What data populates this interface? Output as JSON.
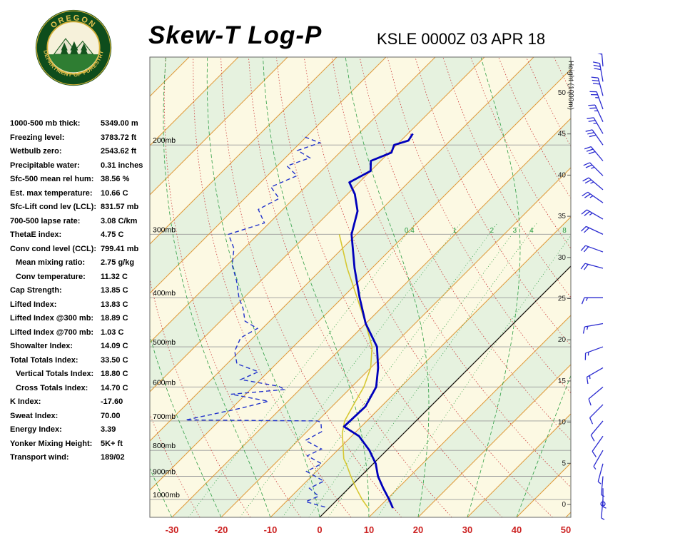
{
  "header": {
    "title": "Skew-T Log-P",
    "subtitle": "KSLE 0000Z 03 APR 18",
    "logo_top": "OREGON",
    "logo_bottom": "DEPARTMENT OF FORESTRY"
  },
  "indices": [
    {
      "label": "1000-500 mb thick:",
      "value": "5349.00 m"
    },
    {
      "label": "Freezing level:",
      "value": "3783.72 ft"
    },
    {
      "label": "Wetbulb zero:",
      "value": "2543.62 ft"
    },
    {
      "label": "Precipitable water:",
      "value": "0.31 inches"
    },
    {
      "label": "Sfc-500 mean rel hum:",
      "value": "38.56 %"
    },
    {
      "label": "Est. max temperature:",
      "value": "10.66 C"
    },
    {
      "label": "Sfc-Lift cond lev (LCL):",
      "value": "831.57 mb"
    },
    {
      "label": "700-500 lapse rate:",
      "value": "3.08 C/km"
    },
    {
      "label": "ThetaE index:",
      "value": "4.75 C"
    },
    {
      "label": "Conv cond level (CCL):",
      "value": "799.41 mb"
    },
    {
      "label": "Mean mixing ratio:",
      "value": "2.75 g/kg",
      "indent": true
    },
    {
      "label": "Conv temperature:",
      "value": "11.32 C",
      "indent": true
    },
    {
      "label": "Cap Strength:",
      "value": "13.85 C"
    },
    {
      "label": "Lifted Index:",
      "value": "13.83 C"
    },
    {
      "label": "Lifted Index @300 mb:",
      "value": "18.89 C"
    },
    {
      "label": "Lifted Index @700 mb:",
      "value": "1.03 C"
    },
    {
      "label": "Showalter Index:",
      "value": "14.09 C"
    },
    {
      "label": "Total Totals Index:",
      "value": "33.50 C"
    },
    {
      "label": "Vertical Totals Index:",
      "value": "18.80 C",
      "indent": true
    },
    {
      "label": "Cross Totals Index:",
      "value": "14.70 C",
      "indent": true
    },
    {
      "label": "K Index:",
      "value": "-17.60"
    },
    {
      "label": "Sweat Index:",
      "value": "70.00"
    },
    {
      "label": "Energy Index:",
      "value": "3.39"
    },
    {
      "label": "Yonker Mixing Height:",
      "value": "5K+ ft"
    },
    {
      "label": "Transport wind:",
      "value": "189/02"
    }
  ],
  "chart_data": {
    "type": "skewt-log-p",
    "station": "KSLE",
    "valid_time": "0000Z 03 APR 18",
    "pressure_levels": [
      200,
      300,
      400,
      500,
      600,
      700,
      800,
      900,
      1000
    ],
    "pressure_labels": [
      "200mb",
      "300mb",
      "400mb",
      "500mb",
      "600mb",
      "700mb",
      "800mb",
      "900mb",
      "1000mb"
    ],
    "temp_axis": {
      "ticks": [
        -30,
        -20,
        -10,
        0,
        10,
        20,
        30,
        40,
        50
      ],
      "unit": "C"
    },
    "height_axis": {
      "label": "Height (1000m)",
      "ticks": [
        0,
        5,
        10,
        15,
        20,
        25,
        30,
        35,
        40,
        45,
        50
      ]
    },
    "isotherms": {
      "start": -120,
      "end": 60,
      "step": 10
    },
    "dry_adiabats": {
      "start": -40,
      "end": 150,
      "step": 10
    },
    "moist_adiabats": {
      "start": -30,
      "end": 40,
      "step": 10
    },
    "mixing_ratio_lines": [
      0.4,
      1,
      2,
      3,
      4,
      8
    ],
    "mixing_ratio_labels": [
      "0.4",
      "1",
      "2",
      "3",
      "4",
      "8"
    ],
    "temperature_profile": [
      [
        1040,
        13
      ],
      [
        1000,
        10.5
      ],
      [
        950,
        7
      ],
      [
        900,
        3.5
      ],
      [
        850,
        0.5
      ],
      [
        800,
        -3.5
      ],
      [
        750,
        -8.5
      ],
      [
        718,
        -13.5
      ],
      [
        656,
        -13.2
      ],
      [
        600,
        -15
      ],
      [
        550,
        -18.5
      ],
      [
        500,
        -23
      ],
      [
        450,
        -30
      ],
      [
        400,
        -36.5
      ],
      [
        350,
        -43.5
      ],
      [
        300,
        -51
      ],
      [
        270,
        -54.5
      ],
      [
        250,
        -58.5
      ],
      [
        237,
        -62
      ],
      [
        225,
        -60
      ],
      [
        215,
        -62
      ],
      [
        207,
        -59.5
      ],
      [
        200,
        -60.5
      ],
      [
        196,
        -58.5
      ],
      [
        190,
        -59
      ]
    ],
    "dewpoint_profile": [
      [
        1035,
        -1
      ],
      [
        1010,
        -6
      ],
      [
        985,
        -4.5
      ],
      [
        950,
        -8
      ],
      [
        920,
        -6.5
      ],
      [
        880,
        -12
      ],
      [
        850,
        -10.5
      ],
      [
        820,
        -15
      ],
      [
        795,
        -13.5
      ],
      [
        765,
        -18.5
      ],
      [
        735,
        -17
      ],
      [
        705,
        -19
      ],
      [
        700,
        -20
      ],
      [
        697,
        -47
      ],
      [
        660,
        -38
      ],
      [
        640,
        -34
      ],
      [
        620,
        -43
      ],
      [
        607,
        -33
      ],
      [
        598,
        -35
      ],
      [
        580,
        -44
      ],
      [
        560,
        -42
      ],
      [
        540,
        -48
      ],
      [
        510,
        -51
      ],
      [
        480,
        -52.5
      ],
      [
        460,
        -51
      ],
      [
        445,
        -55
      ],
      [
        420,
        -58
      ],
      [
        400,
        -61
      ],
      [
        370,
        -65
      ],
      [
        345,
        -69
      ],
      [
        320,
        -72
      ],
      [
        300,
        -76
      ],
      [
        285,
        -71
      ],
      [
        268,
        -75
      ],
      [
        255,
        -73
      ],
      [
        242,
        -77
      ],
      [
        230,
        -74
      ],
      [
        220,
        -78
      ],
      [
        212,
        -75
      ],
      [
        205,
        -79
      ],
      [
        198,
        -76
      ],
      [
        192,
        -81
      ]
    ],
    "parcel_path": [
      [
        1040,
        8
      ],
      [
        1000,
        5
      ],
      [
        950,
        1.5
      ],
      [
        900,
        -2
      ],
      [
        850,
        -5.5
      ],
      [
        831,
        -7
      ],
      [
        780,
        -10
      ],
      [
        740,
        -12.5
      ],
      [
        700,
        -14.5
      ],
      [
        650,
        -16
      ],
      [
        600,
        -17.5
      ],
      [
        550,
        -20
      ],
      [
        500,
        -24
      ],
      [
        450,
        -30
      ],
      [
        400,
        -37
      ],
      [
        350,
        -45
      ],
      [
        300,
        -53.5
      ]
    ],
    "wind_barbs": [
      [
        1020,
        190,
        2
      ],
      [
        1000,
        185,
        3
      ],
      [
        950,
        180,
        5
      ],
      [
        900,
        185,
        5
      ],
      [
        850,
        195,
        5
      ],
      [
        800,
        210,
        5
      ],
      [
        750,
        215,
        10
      ],
      [
        700,
        220,
        10
      ],
      [
        650,
        225,
        10
      ],
      [
        600,
        230,
        10
      ],
      [
        550,
        240,
        15
      ],
      [
        500,
        250,
        15
      ],
      [
        450,
        260,
        15
      ],
      [
        400,
        270,
        15
      ],
      [
        350,
        285,
        20
      ],
      [
        325,
        290,
        20
      ],
      [
        300,
        295,
        20
      ],
      [
        280,
        300,
        25
      ],
      [
        260,
        305,
        25
      ],
      [
        245,
        310,
        25
      ],
      [
        230,
        315,
        25
      ],
      [
        215,
        320,
        30
      ],
      [
        200,
        325,
        30
      ],
      [
        190,
        330,
        25
      ],
      [
        180,
        335,
        25
      ],
      [
        170,
        340,
        25
      ],
      [
        160,
        345,
        30
      ],
      [
        150,
        350,
        30
      ],
      [
        140,
        355,
        30
      ]
    ],
    "colors": {
      "band_cream": "#fcf9e3",
      "band_green": "#e6f2df",
      "isotherm": "#e09a3a",
      "dry_adiabat": "#cc3b3b",
      "moist_adiabat": "#2f9e44",
      "mixing_ratio": "#2f9e44",
      "zero_isotherm": "#111111",
      "temperature": "#0000bb",
      "dewpoint": "#2233cc",
      "parcel": "#d6c832",
      "grid": "#9a9a9a",
      "temp_labels": "#cc2222",
      "wind": "#2a2ad0"
    }
  }
}
